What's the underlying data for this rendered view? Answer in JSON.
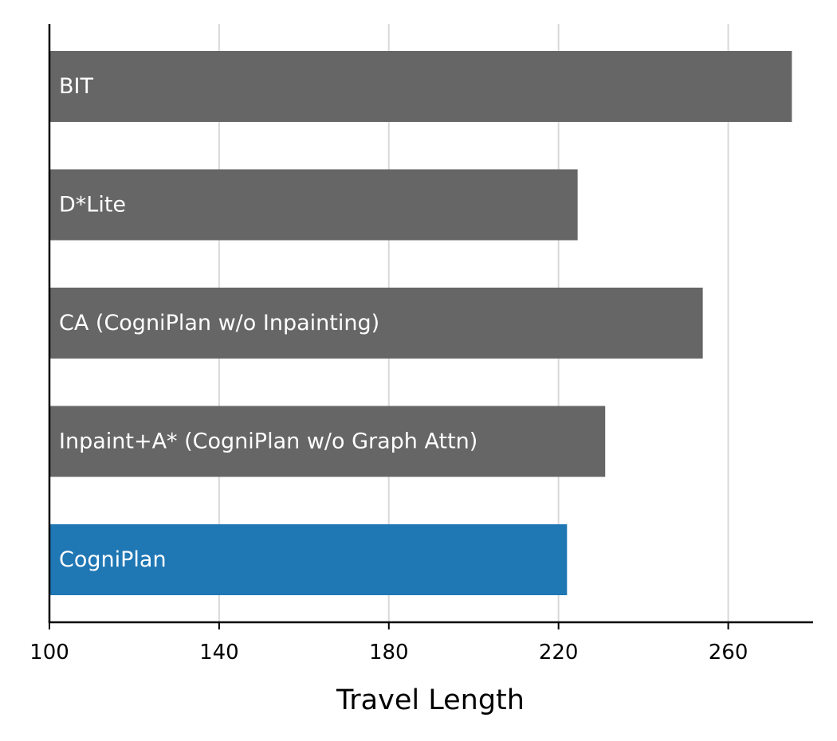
{
  "chart_data": {
    "type": "bar",
    "orientation": "horizontal",
    "title": "",
    "xlabel": "Travel Length",
    "ylabel": "",
    "xlim": [
      100,
      280
    ],
    "xticks": [
      100,
      140,
      180,
      220,
      260
    ],
    "xtick_labels": [
      "100",
      "140",
      "180",
      "220",
      "260"
    ],
    "grid": "vertical",
    "categories": [
      "BIT",
      "D*Lite",
      "CA (CogniPlan w/o Inpainting)",
      "Inpaint+A* (CogniPlan w/o Graph Attn)",
      "CogniPlan"
    ],
    "values": [
      275,
      224.5,
      254,
      231,
      222
    ],
    "bar_colors": [
      "#666666",
      "#666666",
      "#666666",
      "#666666",
      "#1f77b4"
    ],
    "label_color": "#ffffff",
    "grid_color": "#d9d9d9",
    "axis_color": "#000000"
  }
}
